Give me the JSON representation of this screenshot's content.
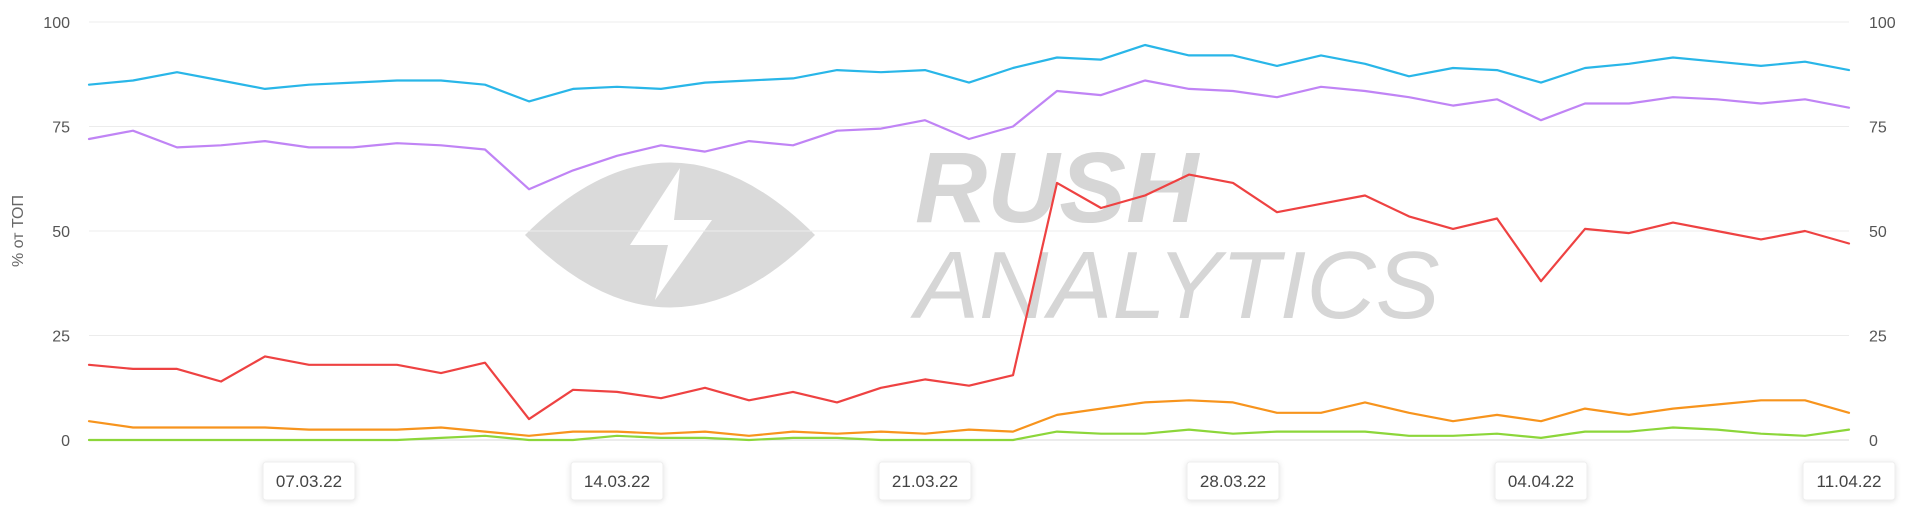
{
  "chart_data": {
    "type": "line",
    "ylabel": "% от ТОП",
    "ylim": [
      0,
      100
    ],
    "y_ticks": [
      "0",
      "25",
      "50",
      "75",
      "100"
    ],
    "x": [
      "2022-03-02",
      "2022-03-03",
      "2022-03-04",
      "2022-03-05",
      "2022-03-06",
      "2022-03-07",
      "2022-03-08",
      "2022-03-09",
      "2022-03-10",
      "2022-03-11",
      "2022-03-12",
      "2022-03-13",
      "2022-03-14",
      "2022-03-15",
      "2022-03-16",
      "2022-03-17",
      "2022-03-18",
      "2022-03-19",
      "2022-03-20",
      "2022-03-21",
      "2022-03-22",
      "2022-03-23",
      "2022-03-24",
      "2022-03-25",
      "2022-03-26",
      "2022-03-27",
      "2022-03-28",
      "2022-03-29",
      "2022-03-30",
      "2022-03-31",
      "2022-04-01",
      "2022-04-02",
      "2022-04-03",
      "2022-04-04",
      "2022-04-05",
      "2022-04-06",
      "2022-04-07",
      "2022-04-08",
      "2022-04-09",
      "2022-04-10",
      "2022-04-11"
    ],
    "x_tick_labels": [
      "07.03.22",
      "14.03.22",
      "21.03.22",
      "28.03.22",
      "04.04.22",
      "11.04.22"
    ],
    "grid": true,
    "series": [
      {
        "color": "#29b6e8",
        "values": [
          85,
          86,
          88,
          86,
          84,
          85,
          85.5,
          86,
          86,
          85,
          81,
          84,
          84.5,
          84,
          85.5,
          86,
          86.5,
          88.5,
          88,
          88.5,
          85.5,
          89,
          91.5,
          91,
          94.5,
          92,
          92,
          89.5,
          92,
          90,
          87,
          89,
          88.5,
          85.5,
          89,
          90,
          91.5,
          90.5,
          89.5,
          90.5,
          88.5
        ]
      },
      {
        "color": "#c084f5",
        "values": [
          72,
          74,
          70,
          70.5,
          71.5,
          70,
          70,
          71,
          70.5,
          69.5,
          60,
          64.5,
          68,
          70.5,
          69,
          71.5,
          70.5,
          74,
          74.5,
          76.5,
          72,
          75,
          83.5,
          82.5,
          86,
          84,
          83.5,
          82,
          84.5,
          83.5,
          82,
          80,
          81.5,
          76.5,
          80.5,
          80.5,
          82,
          81.5,
          80.5,
          81.5,
          79.5
        ]
      },
      {
        "color": "#ee4242",
        "values": [
          18,
          17,
          17,
          14,
          20,
          18,
          18,
          18,
          16,
          18.5,
          5,
          12,
          11.5,
          10,
          12.5,
          9.5,
          11.5,
          9,
          12.5,
          14.5,
          13,
          15.5,
          61.5,
          55.5,
          58.5,
          63.5,
          61.5,
          54.5,
          56.5,
          58.5,
          53.5,
          50.5,
          53,
          38,
          50.5,
          49.5,
          52,
          50,
          48,
          50,
          47
        ]
      },
      {
        "color": "#f7941d",
        "values": [
          4.5,
          3,
          3,
          3,
          3,
          2.5,
          2.5,
          2.5,
          3,
          2,
          1,
          2,
          2,
          1.5,
          2,
          1,
          2,
          1.5,
          2,
          1.5,
          2.5,
          2,
          6,
          7.5,
          9,
          9.5,
          9,
          6.5,
          6.5,
          9,
          6.5,
          4.5,
          6,
          4.5,
          7.5,
          6,
          7.5,
          8.5,
          9.5,
          9.5,
          6.5
        ]
      },
      {
        "color": "#8cd63a",
        "values": [
          0,
          0,
          0,
          0,
          0,
          0,
          0,
          0,
          0.5,
          1,
          0,
          0,
          1,
          0.5,
          0.5,
          0,
          0.5,
          0.5,
          0,
          0,
          0,
          0,
          2,
          1.5,
          1.5,
          2.5,
          1.5,
          2,
          2,
          2,
          1,
          1,
          1.5,
          0.5,
          2,
          2,
          3,
          2.5,
          1.5,
          1,
          2.5
        ]
      }
    ]
  },
  "watermark": {
    "line1": "RUSH",
    "line2": "ANALYTICS"
  }
}
